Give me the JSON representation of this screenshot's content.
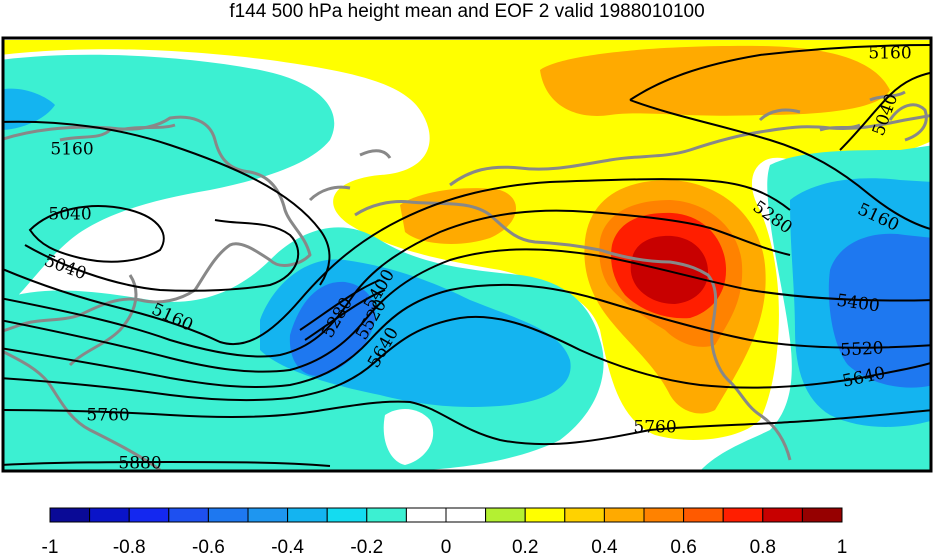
{
  "title": "f144 500 hPa height mean and EOF 2 valid 1988010100",
  "colors": {
    "coastline": "#888888",
    "contour": "#000000",
    "frame": "#000000"
  },
  "contour_labels": [
    {
      "id": "c5160-nw",
      "text": "5160"
    },
    {
      "id": "c5160-ne",
      "text": "5160"
    },
    {
      "id": "c5040-ne",
      "text": "5040"
    },
    {
      "id": "c5040-w1",
      "text": "5040"
    },
    {
      "id": "c5040-w2",
      "text": "5040"
    },
    {
      "id": "c5160-w",
      "text": "5160"
    },
    {
      "id": "c5280-w",
      "text": "5280"
    },
    {
      "id": "c5400-w",
      "text": "5400"
    },
    {
      "id": "c5520-w",
      "text": "5520"
    },
    {
      "id": "c5640-w",
      "text": "5640"
    },
    {
      "id": "c5280-e",
      "text": "5280"
    },
    {
      "id": "c5160-e",
      "text": "5160"
    },
    {
      "id": "c5400-e",
      "text": "5400"
    },
    {
      "id": "c5520-e",
      "text": "5520"
    },
    {
      "id": "c5640-e",
      "text": "5640"
    },
    {
      "id": "c5760-w",
      "text": "5760"
    },
    {
      "id": "c5760-c",
      "text": "5760"
    },
    {
      "id": "c5880-w",
      "text": "5880"
    }
  ],
  "colorbar": {
    "colors": [
      "#0a0a96",
      "#0a14c8",
      "#1428f0",
      "#1e50f0",
      "#1e78f0",
      "#1e96f0",
      "#14b4f0",
      "#14dcf0",
      "#3cf0d2",
      "#ffffff",
      "#ffffff",
      "#b4f032",
      "#ffff00",
      "#ffd200",
      "#ffaa00",
      "#ff8200",
      "#ff5a00",
      "#ff1e00",
      "#c80000",
      "#960000"
    ],
    "tick_labels": [
      "-1",
      "-0.8",
      "-0.6",
      "-0.4",
      "-0.2",
      "0",
      "0.2",
      "0.4",
      "0.6",
      "0.8",
      "1"
    ],
    "range": [
      -1,
      1
    ]
  }
}
